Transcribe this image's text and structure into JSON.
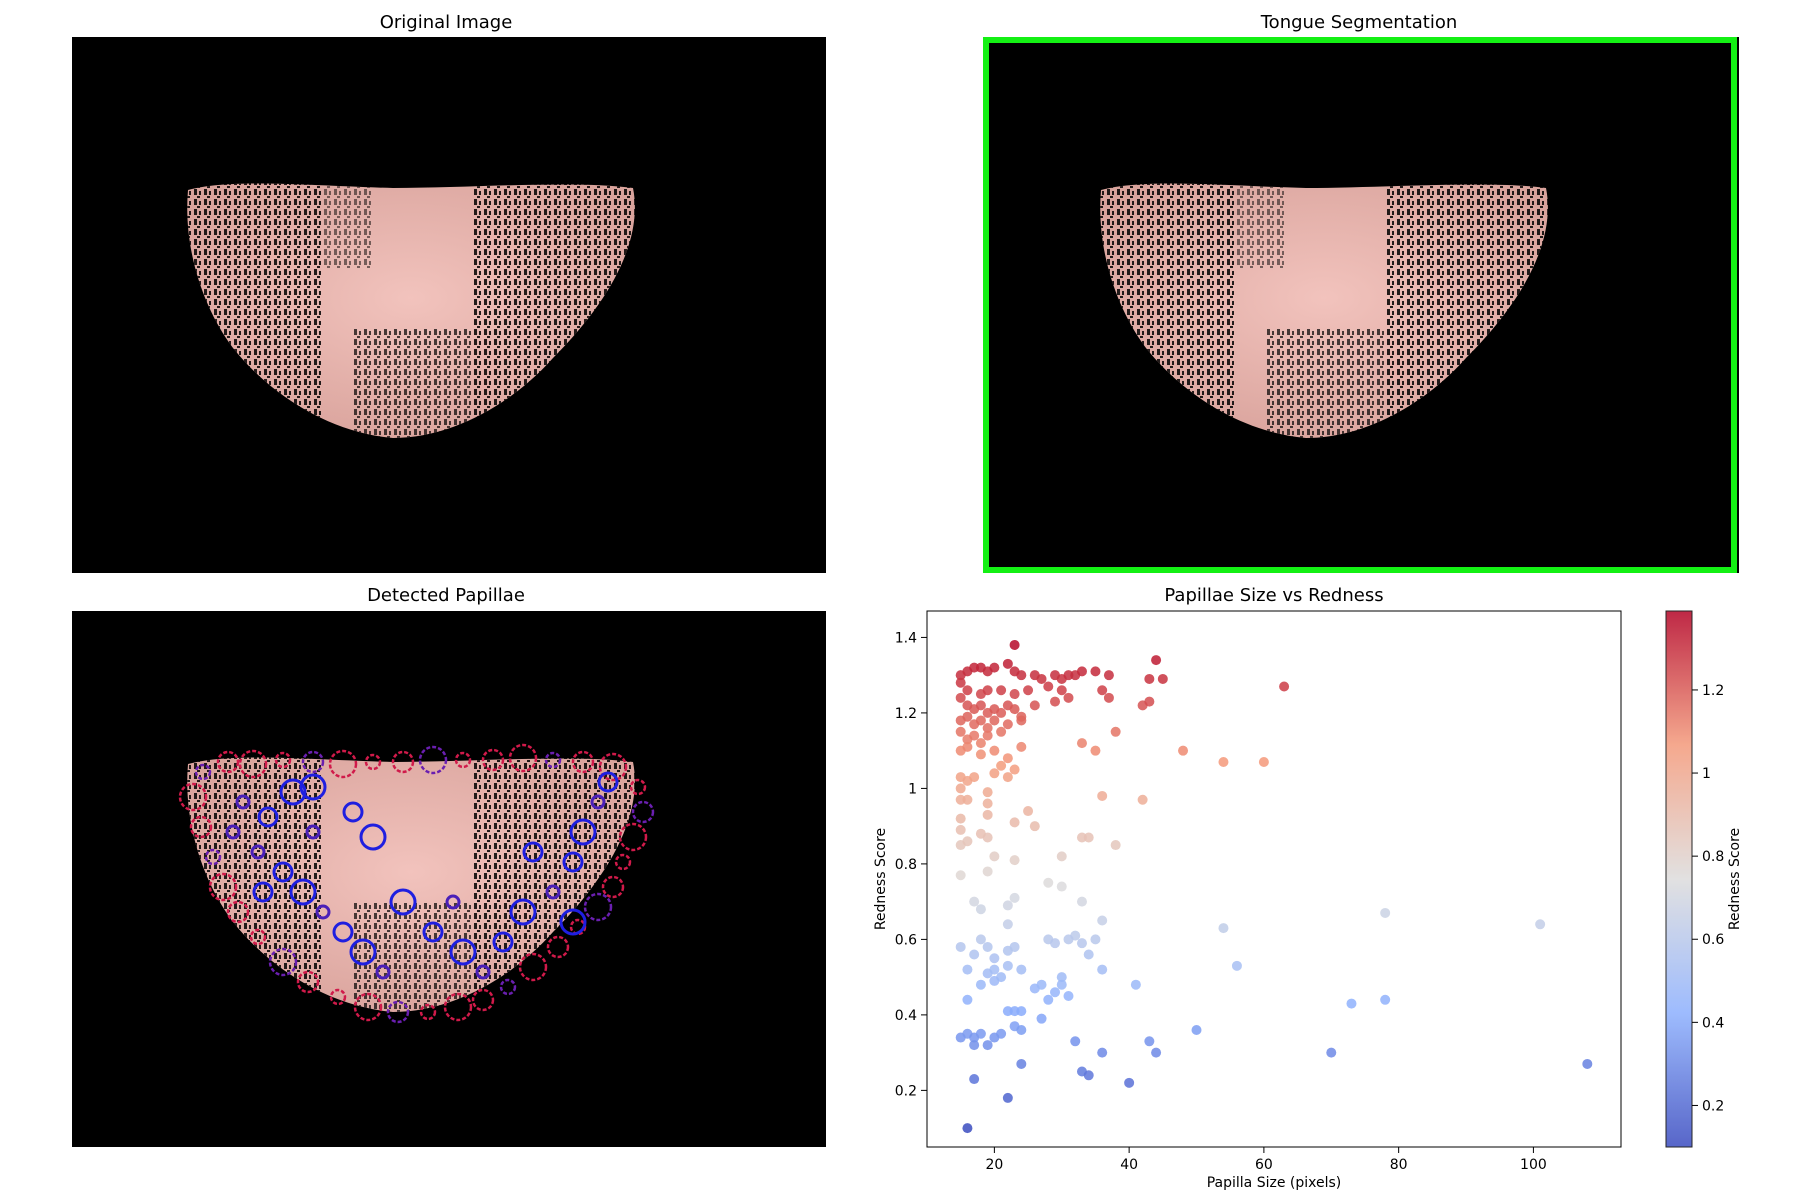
{
  "panels": {
    "original_title": "Original Image",
    "segmentation_title": "Tongue Segmentation",
    "papillae_title": "Detected Papillae",
    "scatter_title": "Papillae Size vs Redness"
  },
  "colors": {
    "segmentation_border": "#14f014",
    "tongue_base": "#e8b4ad",
    "colormap": "coolwarm"
  },
  "chart_data": {
    "type": "scatter",
    "title": "Papillae Size vs Redness",
    "xlabel": "Papilla Size (pixels)",
    "ylabel": "Redness Score",
    "xlim": [
      10,
      113
    ],
    "ylim": [
      0.05,
      1.47
    ],
    "xticks": [
      20,
      40,
      60,
      80,
      100
    ],
    "yticks": [
      0.2,
      0.4,
      0.6,
      0.8,
      1.0,
      1.2,
      1.4
    ],
    "grid": false,
    "colorbar": {
      "label": "Redness Score",
      "min": 0.1,
      "max": 1.39,
      "ticks": [
        0.2,
        0.4,
        0.6,
        0.8,
        1.0,
        1.2
      ]
    },
    "points": [
      [
        23,
        1.38
      ],
      [
        22,
        1.33
      ],
      [
        16,
        1.31
      ],
      [
        17,
        1.32
      ],
      [
        18,
        1.32
      ],
      [
        19,
        1.31
      ],
      [
        20,
        1.32
      ],
      [
        15,
        1.3
      ],
      [
        23,
        1.31
      ],
      [
        24,
        1.3
      ],
      [
        26,
        1.3
      ],
      [
        27,
        1.29
      ],
      [
        29,
        1.3
      ],
      [
        30,
        1.29
      ],
      [
        31,
        1.3
      ],
      [
        32,
        1.3
      ],
      [
        33,
        1.31
      ],
      [
        35,
        1.31
      ],
      [
        37,
        1.3
      ],
      [
        44,
        1.34
      ],
      [
        43,
        1.29
      ],
      [
        45,
        1.29
      ],
      [
        63,
        1.27
      ],
      [
        15,
        1.28
      ],
      [
        16,
        1.26
      ],
      [
        18,
        1.25
      ],
      [
        19,
        1.26
      ],
      [
        21,
        1.26
      ],
      [
        23,
        1.25
      ],
      [
        25,
        1.26
      ],
      [
        28,
        1.27
      ],
      [
        30,
        1.26
      ],
      [
        31,
        1.24
      ],
      [
        36,
        1.26
      ],
      [
        37,
        1.24
      ],
      [
        15,
        1.24
      ],
      [
        16,
        1.22
      ],
      [
        17,
        1.21
      ],
      [
        18,
        1.22
      ],
      [
        19,
        1.2
      ],
      [
        20,
        1.21
      ],
      [
        21,
        1.2
      ],
      [
        22,
        1.22
      ],
      [
        23,
        1.21
      ],
      [
        24,
        1.19
      ],
      [
        26,
        1.22
      ],
      [
        29,
        1.23
      ],
      [
        42,
        1.22
      ],
      [
        43,
        1.23
      ],
      [
        15,
        1.18
      ],
      [
        16,
        1.19
      ],
      [
        17,
        1.17
      ],
      [
        18,
        1.18
      ],
      [
        19,
        1.16
      ],
      [
        20,
        1.18
      ],
      [
        22,
        1.17
      ],
      [
        24,
        1.18
      ],
      [
        15,
        1.15
      ],
      [
        16,
        1.13
      ],
      [
        17,
        1.14
      ],
      [
        18,
        1.12
      ],
      [
        19,
        1.14
      ],
      [
        21,
        1.15
      ],
      [
        38,
        1.15
      ],
      [
        15,
        1.1
      ],
      [
        16,
        1.11
      ],
      [
        18,
        1.09
      ],
      [
        20,
        1.1
      ],
      [
        22,
        1.08
      ],
      [
        24,
        1.11
      ],
      [
        33,
        1.12
      ],
      [
        35,
        1.1
      ],
      [
        48,
        1.1
      ],
      [
        21,
        1.06
      ],
      [
        23,
        1.05
      ],
      [
        54,
        1.07
      ],
      [
        60,
        1.07
      ],
      [
        15,
        1.03
      ],
      [
        16,
        1.02
      ],
      [
        17,
        1.03
      ],
      [
        20,
        1.04
      ],
      [
        22,
        1.03
      ],
      [
        15,
        1.0
      ],
      [
        16,
        0.97
      ],
      [
        19,
        0.99
      ],
      [
        15,
        0.97
      ],
      [
        36,
        0.98
      ],
      [
        42,
        0.97
      ],
      [
        19,
        0.96
      ],
      [
        25,
        0.94
      ],
      [
        15,
        0.92
      ],
      [
        19,
        0.93
      ],
      [
        23,
        0.91
      ],
      [
        15,
        0.89
      ],
      [
        18,
        0.88
      ],
      [
        19,
        0.87
      ],
      [
        26,
        0.9
      ],
      [
        15,
        0.85
      ],
      [
        16,
        0.86
      ],
      [
        33,
        0.87
      ],
      [
        34,
        0.87
      ],
      [
        38,
        0.85
      ],
      [
        20,
        0.82
      ],
      [
        23,
        0.81
      ],
      [
        30,
        0.82
      ],
      [
        19,
        0.78
      ],
      [
        15,
        0.77
      ],
      [
        28,
        0.75
      ],
      [
        30,
        0.74
      ],
      [
        23,
        0.71
      ],
      [
        17,
        0.7
      ],
      [
        18,
        0.68
      ],
      [
        22,
        0.69
      ],
      [
        33,
        0.7
      ],
      [
        78,
        0.67
      ],
      [
        101,
        0.64
      ],
      [
        54,
        0.63
      ],
      [
        22,
        0.64
      ],
      [
        36,
        0.65
      ],
      [
        32,
        0.61
      ],
      [
        15,
        0.58
      ],
      [
        17,
        0.56
      ],
      [
        18,
        0.6
      ],
      [
        19,
        0.58
      ],
      [
        20,
        0.55
      ],
      [
        22,
        0.57
      ],
      [
        23,
        0.58
      ],
      [
        28,
        0.6
      ],
      [
        29,
        0.59
      ],
      [
        31,
        0.6
      ],
      [
        33,
        0.59
      ],
      [
        35,
        0.6
      ],
      [
        16,
        0.52
      ],
      [
        19,
        0.51
      ],
      [
        20,
        0.52
      ],
      [
        21,
        0.5
      ],
      [
        22,
        0.53
      ],
      [
        24,
        0.52
      ],
      [
        30,
        0.5
      ],
      [
        34,
        0.56
      ],
      [
        36,
        0.52
      ],
      [
        56,
        0.53
      ],
      [
        18,
        0.48
      ],
      [
        20,
        0.49
      ],
      [
        26,
        0.47
      ],
      [
        27,
        0.48
      ],
      [
        29,
        0.46
      ],
      [
        30,
        0.48
      ],
      [
        31,
        0.45
      ],
      [
        41,
        0.48
      ],
      [
        16,
        0.44
      ],
      [
        22,
        0.41
      ],
      [
        23,
        0.41
      ],
      [
        24,
        0.41
      ],
      [
        28,
        0.44
      ],
      [
        73,
        0.43
      ],
      [
        78,
        0.44
      ],
      [
        15,
        0.34
      ],
      [
        16,
        0.35
      ],
      [
        17,
        0.34
      ],
      [
        18,
        0.35
      ],
      [
        20,
        0.34
      ],
      [
        21,
        0.35
      ],
      [
        23,
        0.37
      ],
      [
        27,
        0.39
      ],
      [
        19,
        0.32
      ],
      [
        24,
        0.36
      ],
      [
        50,
        0.36
      ],
      [
        32,
        0.33
      ],
      [
        43,
        0.33
      ],
      [
        17,
        0.32
      ],
      [
        36,
        0.3
      ],
      [
        44,
        0.3
      ],
      [
        70,
        0.3
      ],
      [
        24,
        0.27
      ],
      [
        108,
        0.27
      ],
      [
        33,
        0.25
      ],
      [
        34,
        0.24
      ],
      [
        17,
        0.23
      ],
      [
        40,
        0.22
      ],
      [
        22,
        0.18
      ],
      [
        16,
        0.1
      ]
    ]
  }
}
